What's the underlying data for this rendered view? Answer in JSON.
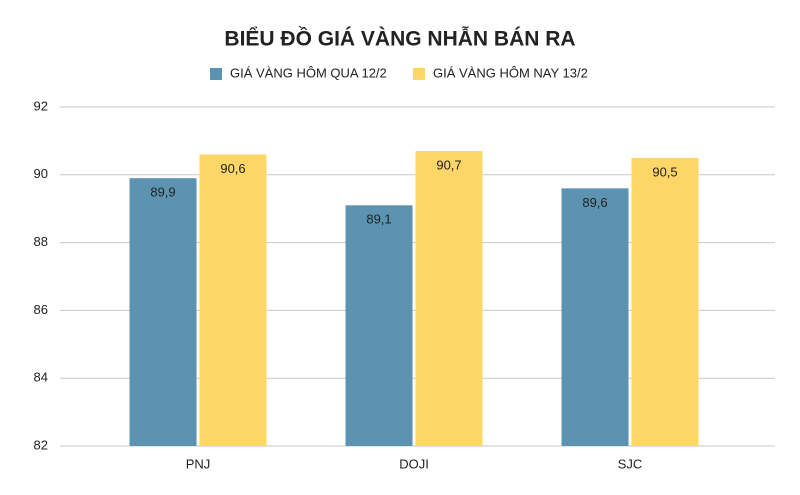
{
  "chart_data": {
    "type": "bar",
    "title": "BIỂU ĐỒ GIÁ VÀNG NHẪN BÁN RA",
    "categories": [
      "PNJ",
      "DOJI",
      "SJC"
    ],
    "series": [
      {
        "name": "GIÁ VÀNG HÔM QUA 12/2",
        "color": "#5b93b1",
        "values": [
          89.9,
          89.1,
          89.6
        ],
        "value_labels": [
          "89,9",
          "89,1",
          "89,6"
        ]
      },
      {
        "name": "GIÁ VÀNG HÔM NAY 13/2",
        "color": "#fcd667",
        "values": [
          90.6,
          90.7,
          90.5
        ],
        "value_labels": [
          "90,6",
          "90,7",
          "90,5"
        ]
      }
    ],
    "ylim": [
      82,
      92
    ],
    "yticks": [
      82,
      84,
      86,
      88,
      90,
      92
    ],
    "grid": true
  }
}
